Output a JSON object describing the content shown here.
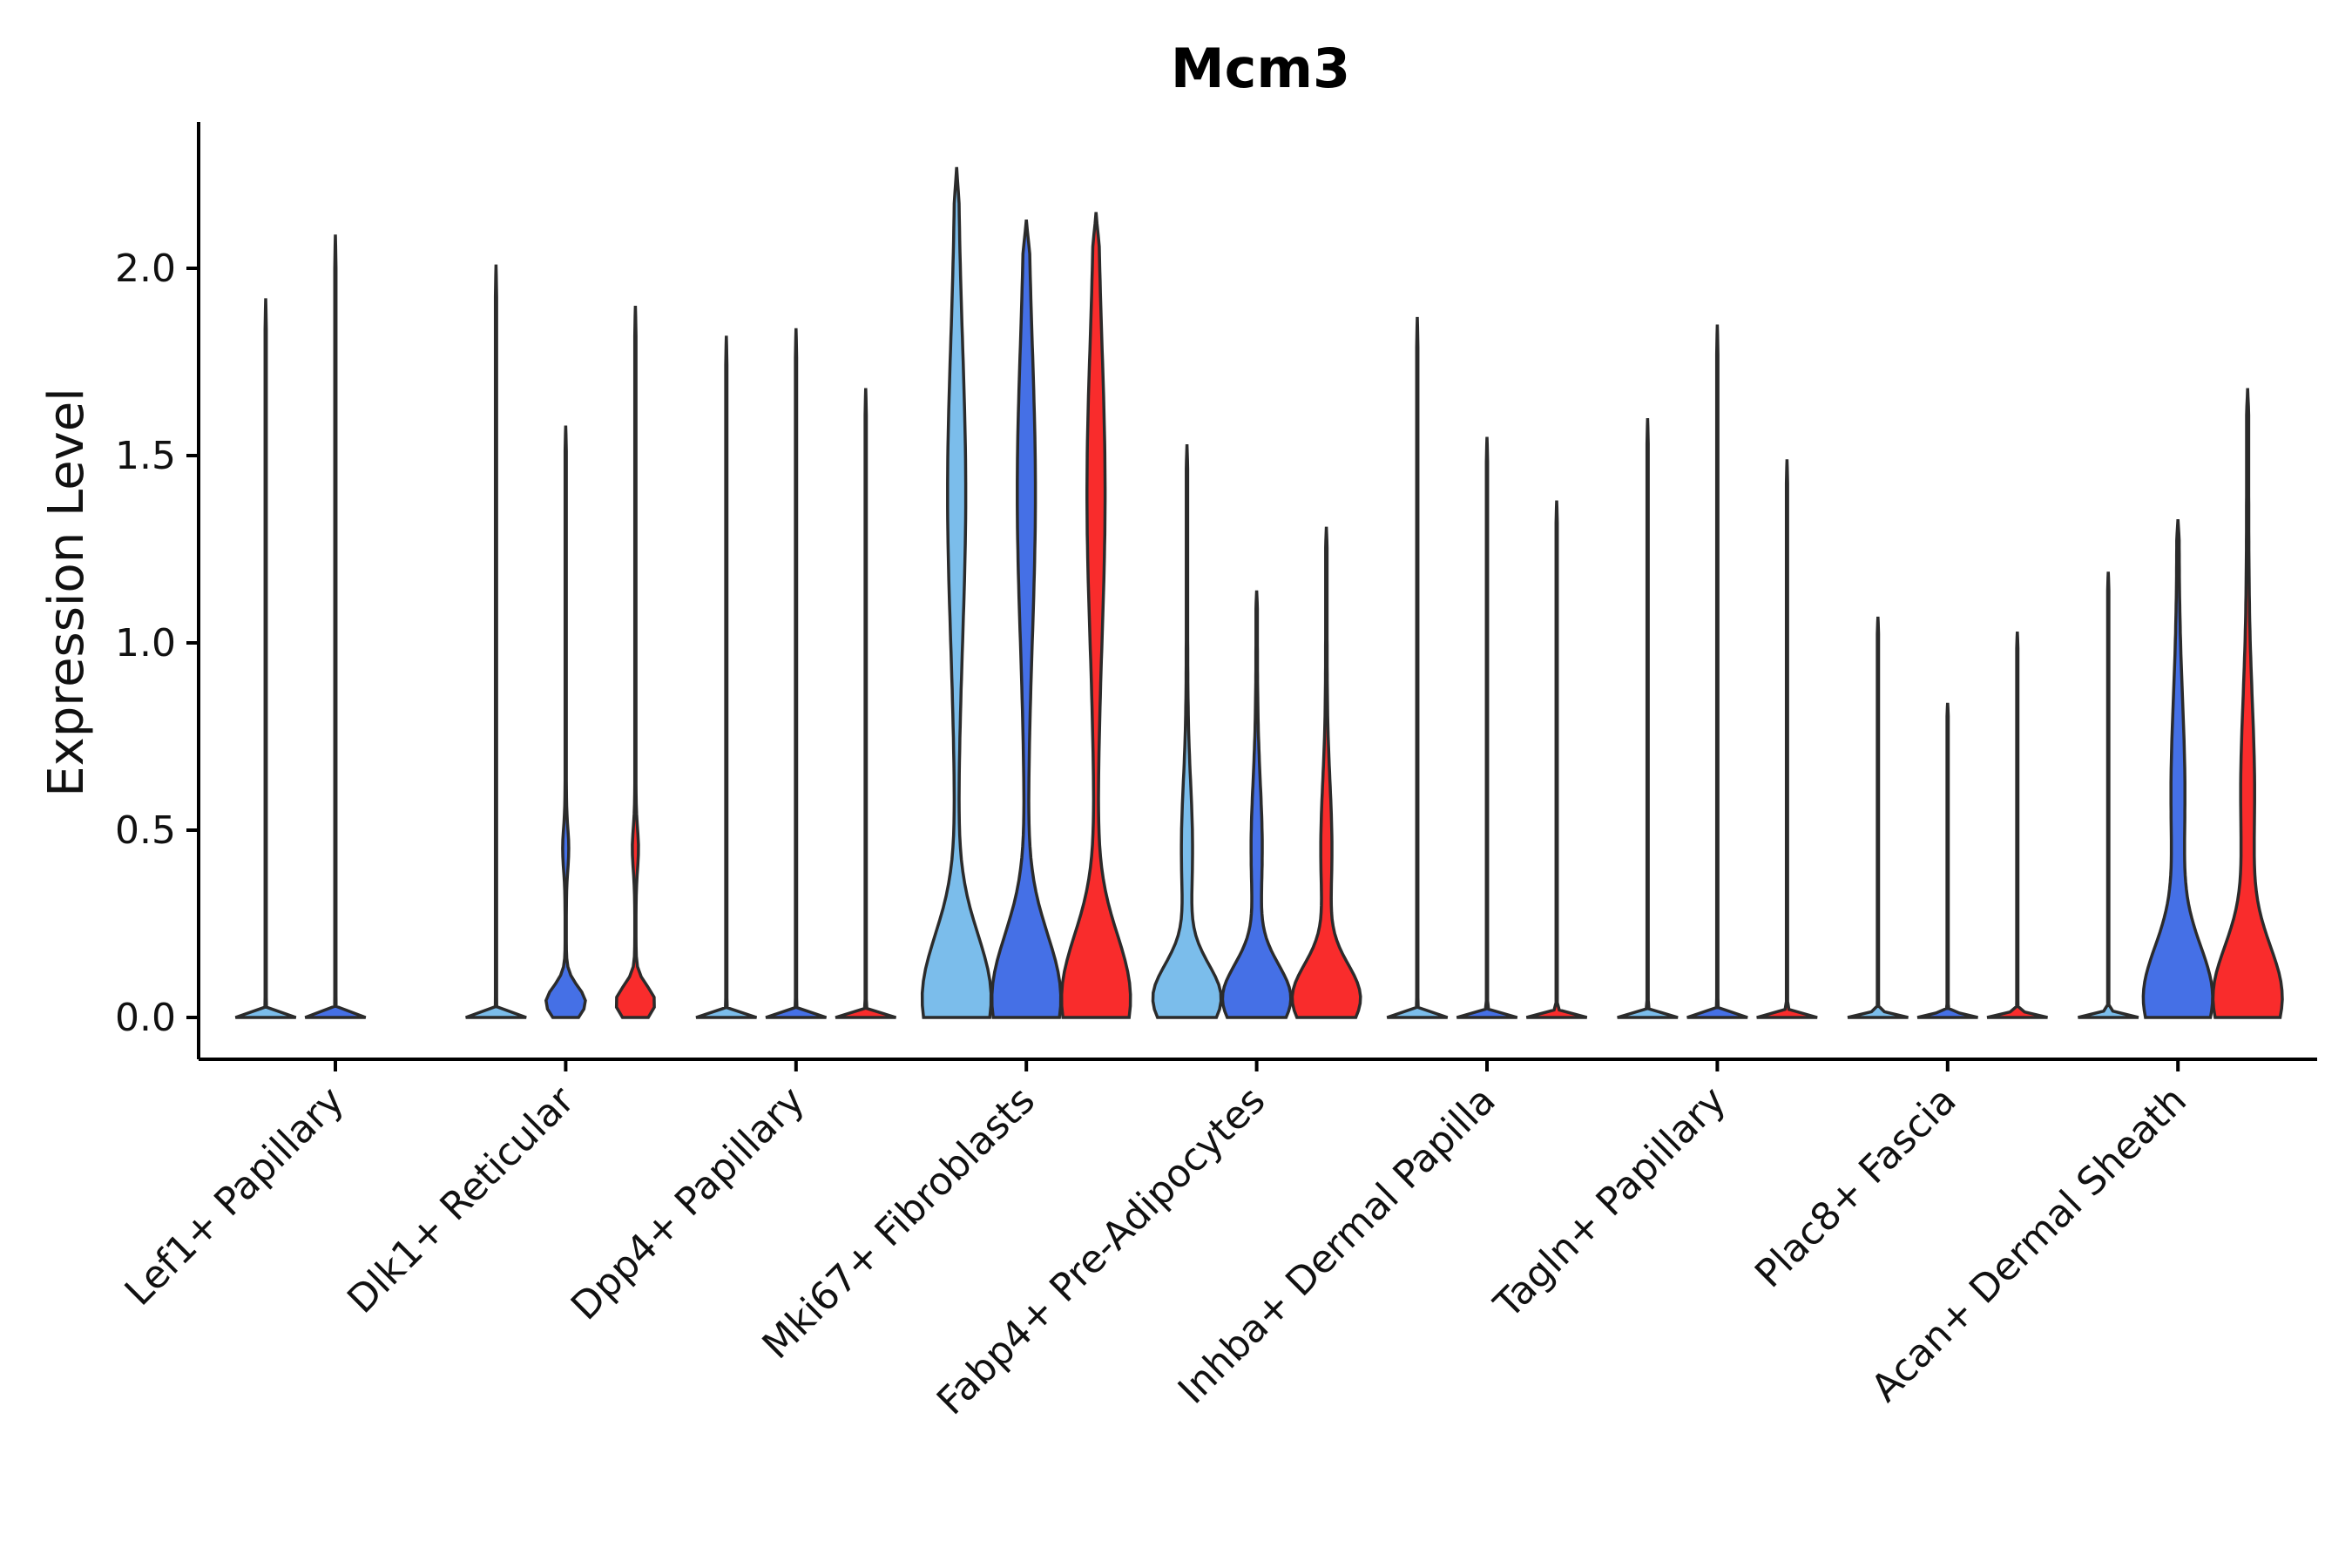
{
  "chart_data": {
    "type": "violin",
    "title": "Mcm3",
    "xlabel": "",
    "ylabel": "Expression Level",
    "ylim": [
      -0.11,
      2.38
    ],
    "yticks": [
      "0.0",
      "0.5",
      "1.0",
      "1.5",
      "2.0"
    ],
    "ytick_values": [
      0,
      0.5,
      1.0,
      1.5,
      2.0
    ],
    "grid": false,
    "legend": "none",
    "series_colors": [
      "#7bbdeb",
      "#4570e6",
      "#f92c2c"
    ],
    "categories": [
      "Lef1+ Papillary",
      "Dlk1+ Reticular",
      "Dpp4+ Papillary",
      "Mki67+ Fibroblasts",
      "Fabp4+ Pre-Adipocytes",
      "Inhba+ Dermal Papilla",
      "Tagln+ Papillary",
      "Plac8+ Fascia",
      "Acan+ Dermal Sheath"
    ],
    "groups": [
      {
        "category": "Lef1+ Papillary",
        "violins": [
          {
            "series": 0,
            "max": 1.92,
            "shape": "spike"
          },
          {
            "series": 1,
            "max": 2.09,
            "shape": "spike"
          },
          {
            "series": 2,
            "max": 0.0,
            "shape": "flat"
          }
        ]
      },
      {
        "category": "Dlk1+ Reticular",
        "violins": [
          {
            "series": 0,
            "max": 2.01,
            "shape": "spike"
          },
          {
            "series": 1,
            "max": 1.58,
            "shape": "small"
          },
          {
            "series": 2,
            "max": 1.9,
            "shape": "small"
          }
        ]
      },
      {
        "category": "Dpp4+ Papillary",
        "violins": [
          {
            "series": 0,
            "max": 1.82,
            "shape": "spike"
          },
          {
            "series": 1,
            "max": 1.84,
            "shape": "spike"
          },
          {
            "series": 2,
            "max": 1.68,
            "shape": "spike"
          }
        ]
      },
      {
        "category": "Mki67+ Fibroblasts",
        "violins": [
          {
            "series": 0,
            "max": 2.27,
            "shape": "large"
          },
          {
            "series": 1,
            "max": 2.13,
            "shape": "large"
          },
          {
            "series": 2,
            "max": 2.15,
            "shape": "large"
          }
        ]
      },
      {
        "category": "Fabp4+ Pre-Adipocytes",
        "violins": [
          {
            "series": 0,
            "max": 1.53,
            "shape": "medium"
          },
          {
            "series": 1,
            "max": 1.14,
            "shape": "medium"
          },
          {
            "series": 2,
            "max": 1.31,
            "shape": "medium"
          }
        ]
      },
      {
        "category": "Inhba+ Dermal Papilla",
        "violins": [
          {
            "series": 0,
            "max": 1.87,
            "shape": "spike"
          },
          {
            "series": 1,
            "max": 1.55,
            "shape": "spike"
          },
          {
            "series": 2,
            "max": 1.38,
            "shape": "spike"
          }
        ]
      },
      {
        "category": "Tagln+ Papillary",
        "violins": [
          {
            "series": 0,
            "max": 1.6,
            "shape": "spike"
          },
          {
            "series": 1,
            "max": 1.85,
            "shape": "spike"
          },
          {
            "series": 2,
            "max": 1.49,
            "shape": "spike"
          }
        ]
      },
      {
        "category": "Plac8+ Fascia",
        "violins": [
          {
            "series": 0,
            "max": 1.07,
            "shape": "spike"
          },
          {
            "series": 1,
            "max": 0.84,
            "shape": "spike"
          },
          {
            "series": 2,
            "max": 1.03,
            "shape": "spike"
          }
        ]
      },
      {
        "category": "Acan+ Dermal Sheath",
        "violins": [
          {
            "series": 0,
            "max": 1.19,
            "shape": "spike"
          },
          {
            "series": 1,
            "max": 1.33,
            "shape": "acan"
          },
          {
            "series": 2,
            "max": 1.68,
            "shape": "acan"
          }
        ]
      }
    ]
  }
}
